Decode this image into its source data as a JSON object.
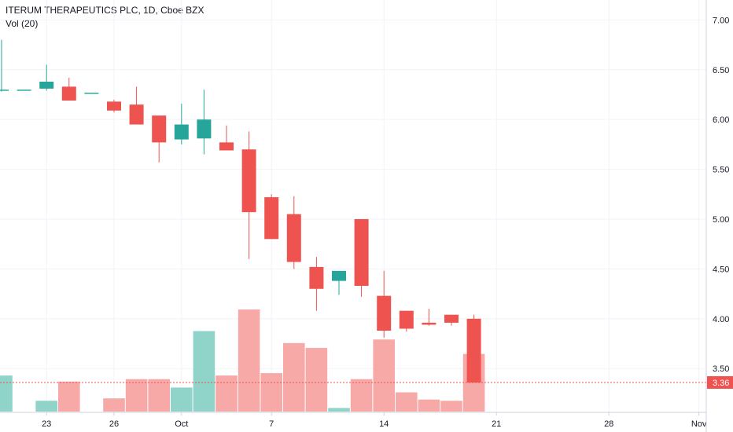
{
  "header": {
    "title": "ITERUM THERAPEUTICS PLC, 1D, Cboe BZX",
    "volume_label": "Vol (20)"
  },
  "colors": {
    "up": "#26a69a",
    "down": "#ef5350",
    "up_volume": "#8fd3c9",
    "down_volume": "#f7a9a7",
    "last_price_line": "#ef5350",
    "grid": "#f0f3fa",
    "axis_border": "#cfd3dc"
  },
  "last_price": "3.36",
  "chart_data": {
    "type": "candlestick",
    "title": "ITERUM THERAPEUTICS PLC, 1D, Cboe BZX",
    "y_axis": {
      "position": "right",
      "ticks": [
        "7.00",
        "6.50",
        "6.00",
        "5.50",
        "5.00",
        "4.50",
        "4.00",
        "3.50"
      ],
      "range": [
        3.06,
        7.2
      ]
    },
    "x_axis": {
      "tick_labels": [
        "23",
        "26",
        "Oct",
        "7",
        "14",
        "21",
        "28",
        "Nov"
      ],
      "tick_positions_in_candles": [
        2,
        5,
        8,
        12,
        17,
        22,
        27,
        31
      ]
    },
    "grid": true,
    "candles": [
      {
        "o": 6.3,
        "h": 6.8,
        "l": 6.28,
        "c": 6.3,
        "v": 30
      },
      {
        "o": 6.3,
        "h": 6.3,
        "l": 6.3,
        "c": 6.3,
        "v": 0
      },
      {
        "o": 6.31,
        "h": 6.55,
        "l": 6.29,
        "c": 6.38,
        "v": 9
      },
      {
        "o": 6.33,
        "h": 6.42,
        "l": 6.19,
        "c": 6.19,
        "v": 25
      },
      {
        "o": 6.27,
        "h": 6.27,
        "l": 6.27,
        "c": 6.27,
        "v": 0
      },
      {
        "o": 6.18,
        "h": 6.2,
        "l": 6.07,
        "c": 6.09,
        "v": 11
      },
      {
        "o": 6.15,
        "h": 6.33,
        "l": 5.95,
        "c": 5.95,
        "v": 27
      },
      {
        "o": 6.04,
        "h": 6.04,
        "l": 5.57,
        "c": 5.77,
        "v": 27
      },
      {
        "o": 5.8,
        "h": 6.16,
        "l": 5.75,
        "c": 5.95,
        "v": 20
      },
      {
        "o": 5.81,
        "h": 6.3,
        "l": 5.65,
        "c": 6.0,
        "v": 67
      },
      {
        "o": 5.77,
        "h": 5.94,
        "l": 5.69,
        "c": 5.69,
        "v": 30
      },
      {
        "o": 5.7,
        "h": 5.88,
        "l": 4.6,
        "c": 5.07,
        "v": 85
      },
      {
        "o": 5.22,
        "h": 5.25,
        "l": 4.8,
        "c": 4.8,
        "v": 32
      },
      {
        "o": 5.05,
        "h": 5.23,
        "l": 4.5,
        "c": 4.57,
        "v": 57
      },
      {
        "o": 4.52,
        "h": 4.62,
        "l": 4.08,
        "c": 4.3,
        "v": 53
      },
      {
        "o": 4.38,
        "h": 4.48,
        "l": 4.24,
        "c": 4.48,
        "v": 3
      },
      {
        "o": 5.0,
        "h": 5.0,
        "l": 4.22,
        "c": 4.33,
        "v": 27
      },
      {
        "o": 4.23,
        "h": 4.48,
        "l": 3.81,
        "c": 3.88,
        "v": 60
      },
      {
        "o": 4.08,
        "h": 4.08,
        "l": 3.87,
        "c": 3.9,
        "v": 16
      },
      {
        "o": 3.96,
        "h": 4.1,
        "l": 3.93,
        "c": 3.94,
        "v": 10
      },
      {
        "o": 4.04,
        "h": 4.04,
        "l": 3.93,
        "c": 3.96,
        "v": 9
      },
      {
        "o": 4.0,
        "h": 4.04,
        "l": 3.36,
        "c": 3.36,
        "v": 48
      }
    ]
  }
}
